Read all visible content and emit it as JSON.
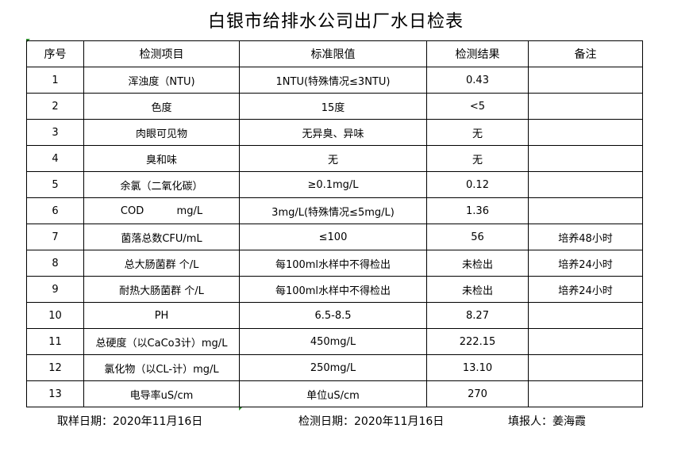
{
  "title": "白银市给排水公司出厂水日检表",
  "headers": [
    "序号",
    "检测项目",
    "标准限值",
    "检测结果",
    "备注"
  ],
  "rows": [
    [
      "1",
      "浑浊度（NTU)",
      "1NTU(特殊情况≤3NTU)",
      "0.43",
      ""
    ],
    [
      "2",
      "色度",
      "15度",
      "<5",
      ""
    ],
    [
      "3",
      "肉眼可见物",
      "无异臭、异味",
      "无",
      ""
    ],
    [
      "4",
      "臭和味",
      "无",
      "无",
      ""
    ],
    [
      "5",
      "余氯（二氧化碳）",
      "≥0.1mg/L",
      "0.12",
      ""
    ],
    [
      "6",
      "COD          mg/L",
      "3mg/L(特殊情况≤5mg/L)",
      "1.36",
      ""
    ],
    [
      "7",
      "菌落总数CFU/mL",
      "≤100",
      "56",
      "培养48小时"
    ],
    [
      "8",
      "总大肠菌群 个/L",
      "每100ml水样中不得检出",
      "未检出",
      "培养24小时"
    ],
    [
      "9",
      "耐热大肠菌群 个/L",
      "每100ml水样中不得检出",
      "未检出",
      "培养24小时"
    ],
    [
      "10",
      "PH",
      "6.5-8.5",
      "8.27",
      ""
    ],
    [
      "11",
      "总硬度（以CaCo3计）mg/L",
      "450mg/L",
      "222.15",
      ""
    ],
    [
      "12",
      "氯化物（以CL-计）mg/L",
      "250mg/L",
      "13.10",
      ""
    ],
    [
      "13",
      "电导率uS/cm",
      "单位uS/cm",
      "270",
      ""
    ]
  ],
  "footer": {
    "sampling_date": "取样日期：2020年11月16日",
    "test_date": "检测日期：2020年11月16日",
    "reporter": "填报人：姜海霞"
  },
  "colors": {
    "cell_marker": "#2e8b2e"
  }
}
